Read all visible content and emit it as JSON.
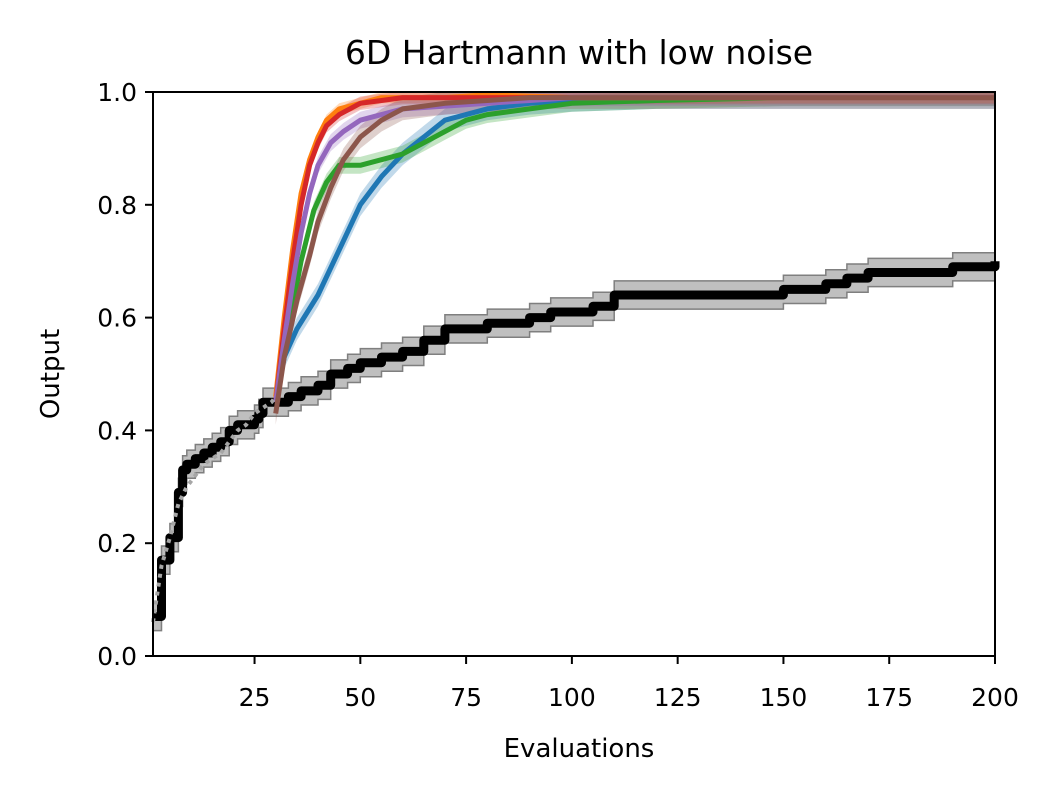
{
  "chart_data": {
    "type": "line",
    "title": "6D Hartmann with low noise",
    "xlabel": "Evaluations",
    "ylabel": "Output",
    "xlim": [
      1,
      200
    ],
    "ylim": [
      0,
      1
    ],
    "xticks": [
      25,
      50,
      75,
      100,
      125,
      150,
      175,
      200
    ],
    "yticks": [
      0.0,
      0.2,
      0.4,
      0.6,
      0.8,
      1.0
    ],
    "xtick_labels": [
      "25",
      "50",
      "75",
      "100",
      "125",
      "150",
      "175",
      "200"
    ],
    "ytick_labels": [
      "0.0",
      "0.2",
      "0.4",
      "0.6",
      "0.8",
      "1.0"
    ],
    "grid": false,
    "series": [
      {
        "name": "black (baseline)",
        "color": "#000000",
        "style": "step",
        "band": 0.025,
        "x": [
          1,
          3,
          5,
          7,
          8,
          9,
          11,
          13,
          15,
          17,
          19,
          21,
          23,
          25,
          26,
          27,
          28,
          30,
          33,
          36,
          40,
          43,
          47,
          50,
          55,
          60,
          65,
          70,
          75,
          80,
          85,
          90,
          95,
          100,
          105,
          110,
          115,
          125,
          140,
          150,
          155,
          160,
          165,
          170,
          175,
          185,
          190,
          195,
          200
        ],
        "y": [
          0.07,
          0.17,
          0.21,
          0.29,
          0.33,
          0.34,
          0.35,
          0.36,
          0.37,
          0.38,
          0.4,
          0.41,
          0.41,
          0.42,
          0.43,
          0.45,
          0.45,
          0.45,
          0.46,
          0.47,
          0.48,
          0.5,
          0.51,
          0.52,
          0.53,
          0.54,
          0.56,
          0.58,
          0.58,
          0.59,
          0.59,
          0.6,
          0.61,
          0.61,
          0.62,
          0.64,
          0.64,
          0.64,
          0.64,
          0.65,
          0.65,
          0.66,
          0.67,
          0.68,
          0.68,
          0.68,
          0.69,
          0.69,
          0.7
        ]
      },
      {
        "name": "grey dotted",
        "color": "#a6a6a6",
        "style": "dotted",
        "x": [
          1,
          3,
          5,
          7,
          9,
          11,
          13,
          15,
          17,
          19,
          21,
          23,
          25,
          27,
          29,
          30
        ],
        "y": [
          0.06,
          0.16,
          0.21,
          0.27,
          0.3,
          0.32,
          0.34,
          0.35,
          0.36,
          0.38,
          0.4,
          0.41,
          0.43,
          0.44,
          0.45,
          0.46
        ]
      },
      {
        "name": "blue",
        "color": "#1f77b4",
        "style": "line",
        "band": 0.02,
        "x": [
          30,
          32,
          35,
          40,
          45,
          50,
          55,
          60,
          65,
          70,
          75,
          80,
          90,
          100,
          120,
          150,
          200
        ],
        "y": [
          0.45,
          0.53,
          0.58,
          0.64,
          0.72,
          0.8,
          0.85,
          0.89,
          0.92,
          0.95,
          0.96,
          0.97,
          0.98,
          0.985,
          0.99,
          0.99,
          0.99
        ]
      },
      {
        "name": "green",
        "color": "#2ca02c",
        "style": "line",
        "band": 0.015,
        "x": [
          30,
          33,
          36,
          39,
          42,
          45,
          50,
          55,
          60,
          65,
          70,
          75,
          80,
          90,
          100,
          120,
          150,
          200
        ],
        "y": [
          0.45,
          0.58,
          0.7,
          0.79,
          0.84,
          0.87,
          0.87,
          0.88,
          0.89,
          0.91,
          0.93,
          0.95,
          0.96,
          0.97,
          0.98,
          0.985,
          0.99,
          0.99
        ]
      },
      {
        "name": "orange",
        "color": "#ff7f0e",
        "style": "line",
        "band": 0.01,
        "x": [
          30,
          32,
          34,
          36,
          38,
          40,
          42,
          45,
          50,
          55,
          60,
          70,
          80,
          100,
          150,
          200
        ],
        "y": [
          0.46,
          0.6,
          0.72,
          0.82,
          0.88,
          0.92,
          0.95,
          0.97,
          0.98,
          0.99,
          0.99,
          0.99,
          0.995,
          0.99,
          0.99,
          0.99
        ]
      },
      {
        "name": "red",
        "color": "#d62728",
        "style": "line",
        "band": 0.012,
        "x": [
          30,
          32,
          34,
          36,
          38,
          40,
          42,
          45,
          50,
          55,
          60,
          70,
          80,
          100,
          150,
          200
        ],
        "y": [
          0.45,
          0.58,
          0.7,
          0.8,
          0.87,
          0.91,
          0.94,
          0.96,
          0.98,
          0.985,
          0.99,
          0.99,
          0.99,
          0.99,
          0.99,
          0.99
        ]
      },
      {
        "name": "purple",
        "color": "#9467bd",
        "style": "line",
        "band": 0.015,
        "x": [
          30,
          32,
          34,
          36,
          38,
          40,
          43,
          46,
          50,
          55,
          60,
          70,
          80,
          90,
          100,
          150,
          200
        ],
        "y": [
          0.45,
          0.56,
          0.66,
          0.75,
          0.82,
          0.87,
          0.91,
          0.93,
          0.95,
          0.96,
          0.97,
          0.975,
          0.98,
          0.985,
          0.99,
          0.99,
          0.99
        ]
      },
      {
        "name": "brown",
        "color": "#8c564b",
        "style": "line",
        "band": 0.02,
        "x": [
          30,
          32,
          35,
          38,
          40,
          43,
          46,
          50,
          55,
          60,
          65,
          70,
          80,
          90,
          100,
          150,
          200
        ],
        "y": [
          0.43,
          0.53,
          0.63,
          0.71,
          0.77,
          0.83,
          0.88,
          0.92,
          0.95,
          0.97,
          0.975,
          0.98,
          0.985,
          0.99,
          0.99,
          0.99,
          0.99
        ]
      }
    ]
  }
}
